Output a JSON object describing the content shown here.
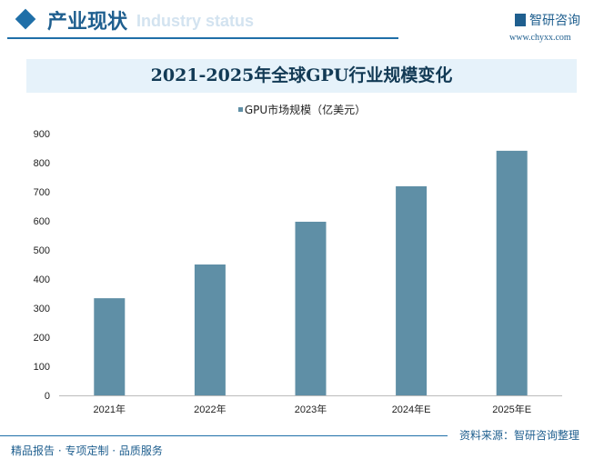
{
  "header": {
    "section_title": "产业现状",
    "section_subtitle": "Industry status",
    "brand": "智研咨询",
    "url": "www.chyxx.com"
  },
  "footer": {
    "left": "精品报告 · 专项定制 · 品质服务",
    "right": "资料来源：智研咨询整理"
  },
  "colors": {
    "bar": "#5f8fa6",
    "accent": "#1f6fa8"
  },
  "chart_data": {
    "type": "bar",
    "title": "2021-2025年全球GPU行业规模变化",
    "categories": [
      "2021年",
      "2022年",
      "2023年",
      "2024年E",
      "2025年E"
    ],
    "series": [
      {
        "name": "GPU市场规模（亿美元）",
        "values": [
          334,
          450,
          597,
          719,
          841
        ]
      }
    ],
    "yticks": [
      0,
      100,
      200,
      300,
      400,
      500,
      600,
      700,
      800,
      900
    ],
    "ylim": [
      0,
      900
    ],
    "xlabel": "",
    "ylabel": "",
    "legend": "top-center",
    "grid": false
  }
}
